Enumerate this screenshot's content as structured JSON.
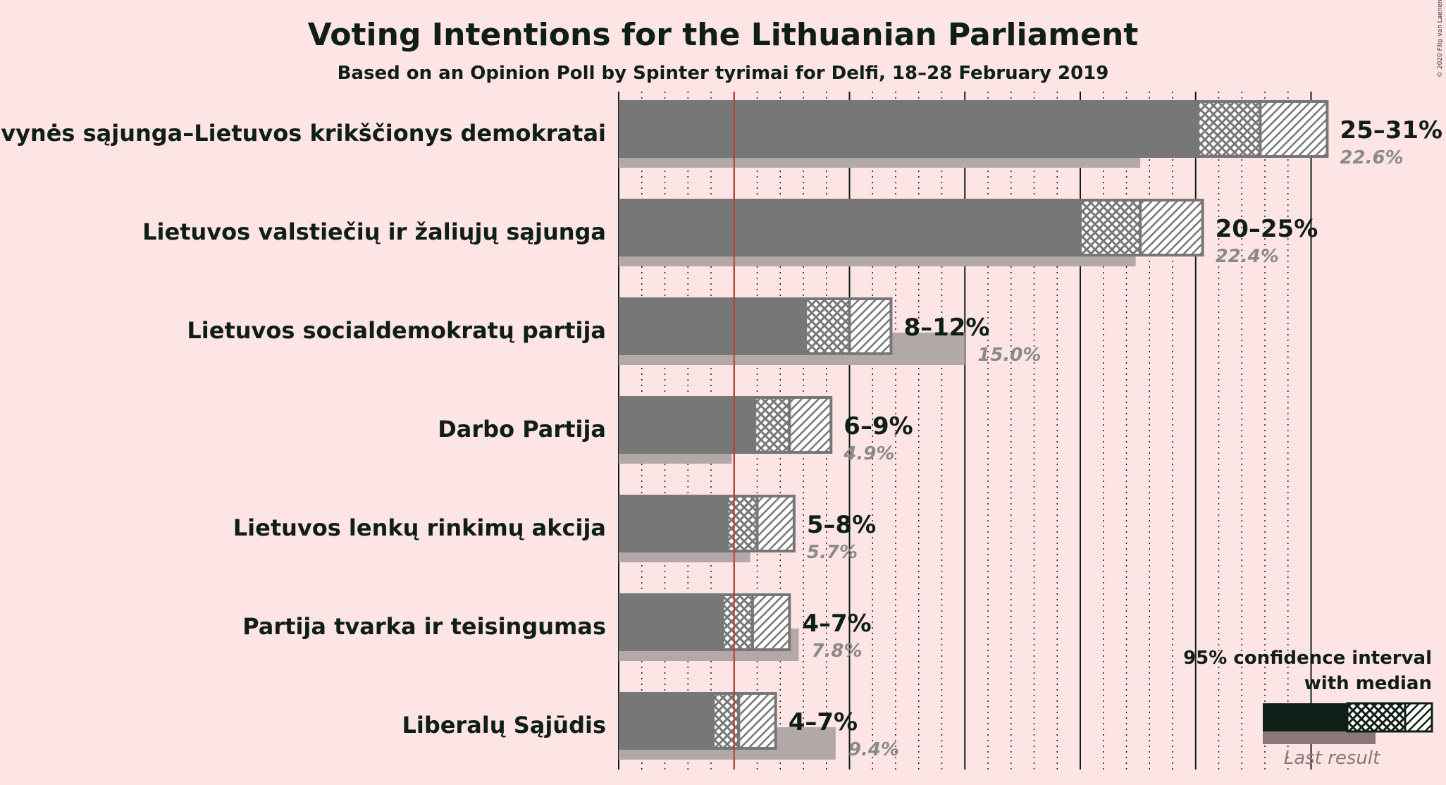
{
  "chart_data": {
    "type": "bar",
    "title": "Voting Intentions for the Lithuanian Parliament",
    "subtitle": "Based on an Opinion Poll by Spinter tyrimai for Delfi, 18–28 February 2019",
    "copyright": "© 2020 Filip van Laenen",
    "threshold": 5,
    "xlim": [
      0,
      31
    ],
    "colors": {
      "background": "#fde5e5",
      "bar": "#777777",
      "last_result": "#b3a8a8",
      "threshold_line": "#c0392b",
      "legend_bar": "#0f1e16",
      "legend_last": "#8a7878"
    },
    "parties": [
      {
        "name": "Tėvynės sąjunga–Lietuvos krikščionys demokratai",
        "ci_low": 25,
        "ci_mid_low": 25.1,
        "median": 27.8,
        "ci_high": 30.7,
        "range": "25–31%",
        "last_value": 22.6,
        "last_label": "22.6%"
      },
      {
        "name": "Lietuvos valstiečių ir žaliųjų sąjunga",
        "ci_low": 20,
        "ci_mid_low": 20,
        "median": 22.6,
        "ci_high": 25.3,
        "range": "20–25%",
        "last_value": 22.4,
        "last_label": "22.4%"
      },
      {
        "name": "Lietuvos socialdemokratų partija",
        "ci_low": 8,
        "ci_mid_low": 8.1,
        "median": 10,
        "ci_high": 11.8,
        "range": "8–12%",
        "last_value": 15.0,
        "last_label": "15.0%"
      },
      {
        "name": "Darbo Partija",
        "ci_low": 6,
        "ci_mid_low": 5.9,
        "median": 7.4,
        "ci_high": 9.2,
        "range": "6–9%",
        "last_value": 4.9,
        "last_label": "4.9%"
      },
      {
        "name": "Lietuvos lenkų rinkimų akcija",
        "ci_low": 5,
        "ci_mid_low": 4.7,
        "median": 6,
        "ci_high": 7.6,
        "range": "5–8%",
        "last_value": 5.7,
        "last_label": "5.7%"
      },
      {
        "name": "Partija tvarka ir teisingumas",
        "ci_low": 4,
        "ci_mid_low": 4.5,
        "median": 5.8,
        "ci_high": 7.4,
        "range": "4–7%",
        "last_value": 7.8,
        "last_label": "7.8%"
      },
      {
        "name": "Liberalų Sąjūdis",
        "ci_low": 4,
        "ci_mid_low": 4.1,
        "median": 5.2,
        "ci_high": 6.8,
        "range": "4–7%",
        "last_value": 9.4,
        "last_label": "9.4%"
      }
    ],
    "legend": {
      "line1": "95% confidence interval",
      "line2": "with median",
      "last_result": "Last result"
    }
  }
}
